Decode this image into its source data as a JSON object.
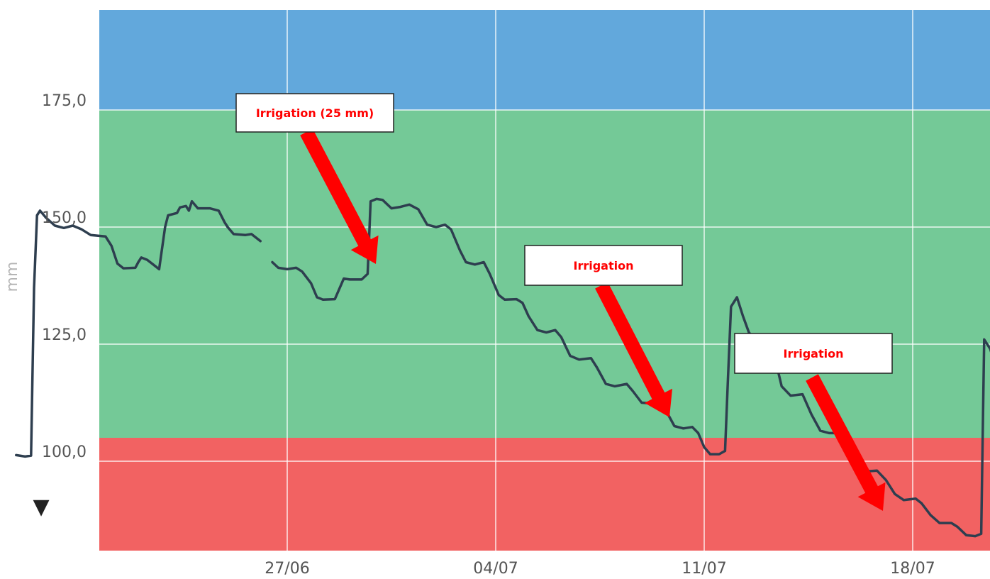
{
  "chart_data": {
    "type": "line",
    "title": "",
    "xlabel": "",
    "ylabel": "mm",
    "x_ticks": [
      "27/06",
      "04/07",
      "11/07",
      "18/07"
    ],
    "y_ticks": [
      "175,0",
      "150,0",
      "125,0",
      "100,0"
    ],
    "ylim": [
      77.5,
      196.8
    ],
    "xlim_days": [
      -9.1,
      20.5
    ],
    "grid": true,
    "bands": [
      {
        "name": "saturated",
        "from": 175,
        "to": 196.8,
        "color": "#62a8dc"
      },
      {
        "name": "optimal",
        "from": 105,
        "to": 175,
        "color": "#74c997"
      },
      {
        "name": "stress",
        "from": 77.5,
        "to": 105,
        "color": "#f26262"
      }
    ],
    "series": [
      {
        "color": "#2e3e4f",
        "segments": [
          [
            [
              -9.1,
              101.3
            ],
            [
              -8.8,
              101.0
            ],
            [
              -8.6,
              101.2
            ],
            [
              -8.5,
              137.0
            ],
            [
              -8.4,
              152.5
            ],
            [
              -8.3,
              153.5
            ],
            [
              -8.1,
              152.0
            ],
            [
              -7.8,
              150.3
            ],
            [
              -7.5,
              149.8
            ],
            [
              -7.2,
              150.3
            ],
            [
              -6.9,
              149.5
            ],
            [
              -6.6,
              148.3
            ],
            [
              -6.1,
              148.0
            ],
            [
              -5.9,
              146.0
            ],
            [
              -5.7,
              142.2
            ],
            [
              -5.5,
              141.2
            ],
            [
              -5.1,
              141.3
            ],
            [
              -5.0,
              142.5
            ],
            [
              -4.9,
              143.5
            ],
            [
              -4.7,
              143.0
            ],
            [
              -4.5,
              142.0
            ],
            [
              -4.3,
              141.0
            ],
            [
              -4.1,
              150.0
            ],
            [
              -4.0,
              152.5
            ],
            [
              -3.7,
              153.0
            ],
            [
              -3.6,
              154.2
            ],
            [
              -3.4,
              154.5
            ],
            [
              -3.3,
              153.5
            ],
            [
              -3.2,
              155.5
            ],
            [
              -3.0,
              154.0
            ],
            [
              -2.6,
              154.0
            ],
            [
              -2.3,
              153.5
            ],
            [
              -2.1,
              151.0
            ],
            [
              -2.0,
              150.0
            ],
            [
              -1.8,
              148.5
            ],
            [
              -1.4,
              148.3
            ],
            [
              -1.2,
              148.5
            ],
            [
              -0.9,
              147.0
            ]
          ],
          [
            [
              -0.5,
              142.5
            ],
            [
              -0.3,
              141.3
            ],
            [
              0.0,
              141.0
            ],
            [
              0.3,
              141.3
            ],
            [
              0.5,
              140.5
            ],
            [
              0.8,
              138.0
            ],
            [
              1.0,
              135.0
            ],
            [
              1.2,
              134.5
            ],
            [
              1.6,
              134.6
            ],
            [
              1.9,
              139.0
            ],
            [
              2.1,
              138.8
            ],
            [
              2.5,
              138.8
            ],
            [
              2.7,
              140.0
            ],
            [
              2.8,
              155.5
            ],
            [
              3.0,
              156.0
            ],
            [
              3.2,
              155.8
            ],
            [
              3.5,
              154.0
            ],
            [
              3.8,
              154.3
            ],
            [
              4.1,
              154.8
            ],
            [
              4.4,
              153.8
            ],
            [
              4.7,
              150.5
            ],
            [
              5.0,
              150.0
            ],
            [
              5.3,
              150.5
            ],
            [
              5.5,
              149.5
            ],
            [
              5.8,
              145.0
            ],
            [
              6.0,
              142.5
            ],
            [
              6.3,
              142.0
            ],
            [
              6.6,
              142.5
            ],
            [
              6.8,
              140.0
            ],
            [
              7.1,
              135.5
            ],
            [
              7.3,
              134.5
            ],
            [
              7.7,
              134.6
            ],
            [
              7.9,
              133.8
            ],
            [
              8.1,
              131.0
            ],
            [
              8.4,
              128.0
            ],
            [
              8.7,
              127.5
            ],
            [
              9.0,
              128.0
            ],
            [
              9.2,
              126.5
            ],
            [
              9.5,
              122.5
            ],
            [
              9.8,
              121.7
            ],
            [
              10.2,
              122.0
            ],
            [
              10.4,
              120.0
            ],
            [
              10.7,
              116.5
            ],
            [
              11.0,
              116.0
            ],
            [
              11.4,
              116.5
            ],
            [
              11.6,
              115.0
            ],
            [
              11.9,
              112.5
            ],
            [
              12.3,
              112.3
            ],
            [
              12.5,
              112.3
            ],
            [
              12.7,
              111.0
            ],
            [
              13.0,
              107.5
            ],
            [
              13.3,
              107.0
            ],
            [
              13.6,
              107.3
            ],
            [
              13.8,
              106.0
            ],
            [
              14.0,
              103.0
            ],
            [
              14.2,
              101.5
            ],
            [
              14.5,
              101.5
            ],
            [
              14.7,
              102.2
            ],
            [
              14.8,
              118.0
            ],
            [
              14.9,
              133.0
            ],
            [
              15.1,
              135.0
            ],
            [
              15.3,
              131.0
            ],
            [
              15.5,
              127.5
            ],
            [
              15.7,
              126.0
            ],
            [
              16.1,
              126.5
            ],
            [
              16.3,
              124.0
            ],
            [
              16.6,
              116.0
            ],
            [
              16.9,
              114.0
            ],
            [
              17.3,
              114.3
            ],
            [
              17.6,
              110.0
            ],
            [
              17.9,
              106.5
            ],
            [
              18.2,
              106.0
            ],
            [
              18.6,
              106.0
            ],
            [
              18.8,
              104.0
            ],
            [
              19.1,
              99.5
            ],
            [
              19.4,
              97.8
            ],
            [
              19.8,
              98.0
            ],
            [
              20.1,
              96.0
            ],
            [
              20.4,
              93.0
            ],
            [
              20.7,
              91.7
            ],
            [
              21.1,
              92.0
            ],
            [
              21.3,
              91.0
            ],
            [
              21.6,
              88.5
            ],
            [
              21.9,
              86.8
            ],
            [
              22.3,
              86.8
            ],
            [
              22.5,
              86.0
            ],
            [
              22.8,
              84.2
            ],
            [
              23.1,
              84.0
            ],
            [
              23.3,
              84.5
            ],
            [
              23.4,
              126.0
            ],
            [
              23.6,
              124.0
            ],
            [
              23.8,
              120.0
            ],
            [
              24.0,
              119.3
            ],
            [
              24.4,
              120.0
            ],
            [
              24.6,
              119.0
            ],
            [
              24.8,
              113.0
            ],
            [
              25.0,
              105.5
            ],
            [
              25.2,
              103.5
            ],
            [
              25.6,
              103.2
            ],
            [
              25.9,
              102.5
            ],
            [
              26.2,
              99.5
            ],
            [
              26.5,
              99.0
            ],
            [
              26.8,
              99.3
            ],
            [
              27.1,
              98.0
            ],
            [
              27.4,
              95.5
            ]
          ]
        ]
      }
    ],
    "annotations": [
      {
        "text": "Irrigation (25 mm)"
      },
      {
        "text": "Irrigation"
      },
      {
        "text": "Irrigation"
      }
    ],
    "marker_symbol": "▼"
  }
}
